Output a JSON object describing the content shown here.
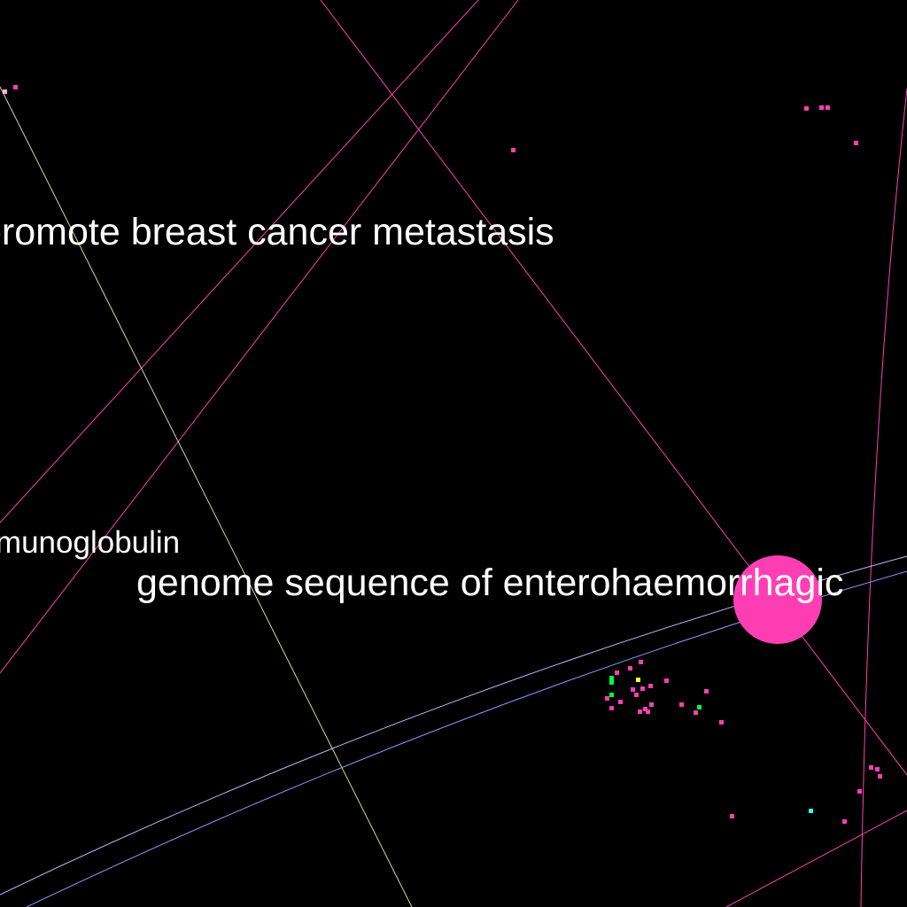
{
  "labels": {
    "breast": "promote breast cancer metastasis",
    "globulin": "immunoglobulin",
    "genome": "genome sequence of enterohaemorrhagic"
  },
  "colors": {
    "background": "#000000",
    "node_pink": "#ff3eb4",
    "node_green": "#00ff3c",
    "node_yellow": "#ffff33",
    "node_cyan": "#33ffff",
    "edge_pink": "#ff3eb4",
    "edge_yellow": "#d8d88a",
    "edge_blue": "#8899ff",
    "label_text": "#ffffff"
  }
}
